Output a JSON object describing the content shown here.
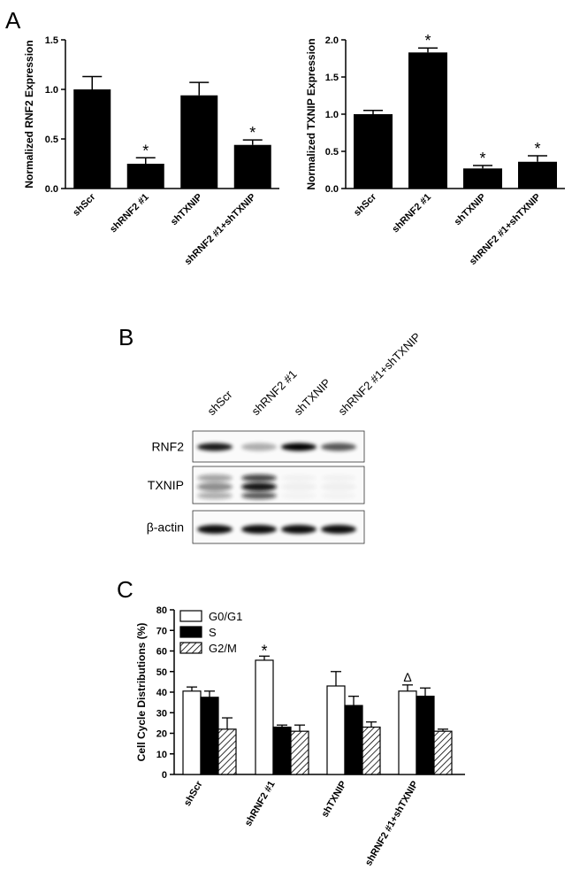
{
  "panels": {
    "a": "A",
    "b": "B",
    "c": "C"
  },
  "colors": {
    "bar": "#000000",
    "background": "#ffffff"
  },
  "chart_data": [
    {
      "type": "bar",
      "panel": "A",
      "ylabel": "Normalized RNF2 Expression",
      "categories": [
        "shScr",
        "shRNF2 #1",
        "shTXNIP",
        "shRNF2 #1+shTXNIP"
      ],
      "values": [
        1.0,
        0.25,
        0.94,
        0.44
      ],
      "errors": [
        0.13,
        0.06,
        0.13,
        0.05
      ],
      "markers": [
        "",
        "*",
        "",
        "*"
      ],
      "ylim": [
        0,
        1.5
      ],
      "yticks": [
        "0.0",
        "0.5",
        "1.0",
        "1.5"
      ]
    },
    {
      "type": "bar",
      "panel": "A",
      "ylabel": "Normalized TXNIP Expression",
      "categories": [
        "shScr",
        "shRNF2 #1",
        "shTXNIP",
        "shRNF2 #1+shTXNIP"
      ],
      "values": [
        1.0,
        1.83,
        0.27,
        0.36
      ],
      "errors": [
        0.05,
        0.06,
        0.04,
        0.08
      ],
      "markers": [
        "",
        "*",
        "*",
        "*"
      ],
      "ylim": [
        0,
        2.0
      ],
      "yticks": [
        "0.0",
        "0.5",
        "1.0",
        "1.5",
        "2.0"
      ]
    },
    {
      "type": "bar",
      "panel": "C",
      "ylabel": "Cell Cycle Distributions (%)",
      "categories": [
        "shScr",
        "shRNF2 #1",
        "shTXNIP",
        "shRNF2 #1+shTXNIP"
      ],
      "series": [
        {
          "name": "G0/G1",
          "values": [
            40.5,
            55.5,
            43,
            40.5
          ],
          "errors": [
            2,
            2,
            7,
            3
          ],
          "markers": [
            "",
            "*",
            "",
            "Δ"
          ]
        },
        {
          "name": "S",
          "values": [
            37.5,
            23,
            33.5,
            38
          ],
          "errors": [
            3,
            1,
            4.5,
            4
          ],
          "markers": [
            "",
            "",
            "",
            ""
          ]
        },
        {
          "name": "G2/M",
          "values": [
            22,
            21,
            23,
            21
          ],
          "errors": [
            5.5,
            3,
            2.5,
            1
          ],
          "markers": [
            "",
            "",
            "",
            ""
          ]
        }
      ],
      "ylim": [
        0,
        80
      ],
      "yticks": [
        "0",
        "10",
        "20",
        "30",
        "40",
        "50",
        "60",
        "70",
        "80"
      ],
      "legend_position": "top-left"
    }
  ],
  "western_blot": {
    "lanes": [
      "shScr",
      "shRNF2 #1",
      "shTXNIP",
      "shRNF2 #1+shTXNIP"
    ],
    "proteins": [
      "RNF2",
      "TXNIP",
      "β-actin"
    ],
    "intensity": {
      "RNF2": [
        0.9,
        0.3,
        1.0,
        0.65
      ],
      "TXNIP": [
        0.45,
        0.95,
        0.04,
        0.04
      ],
      "β-actin": [
        0.95,
        0.95,
        0.95,
        0.95
      ]
    }
  }
}
